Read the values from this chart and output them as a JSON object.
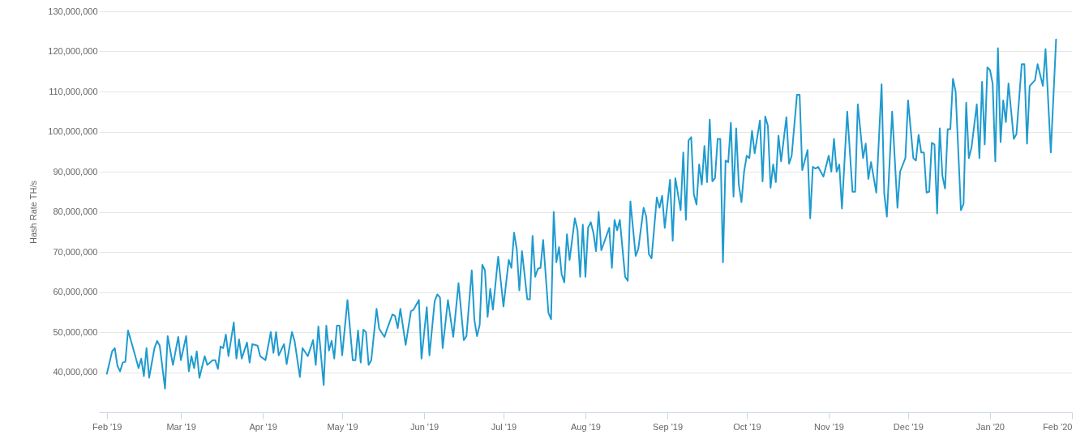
{
  "chart_data": {
    "type": "line",
    "ylabel": "Hash Rate TH/s",
    "x": [
      "2019-02-01",
      "2019-02-03",
      "2019-02-04",
      "2019-02-05",
      "2019-02-06",
      "2019-02-07",
      "2019-02-08",
      "2019-02-09",
      "2019-02-11",
      "2019-02-13",
      "2019-02-14",
      "2019-02-15",
      "2019-02-16",
      "2019-02-17",
      "2019-02-19",
      "2019-02-20",
      "2019-02-21",
      "2019-02-23",
      "2019-02-24",
      "2019-02-26",
      "2019-02-28",
      "2019-03-01",
      "2019-03-03",
      "2019-03-04",
      "2019-03-05",
      "2019-03-06",
      "2019-03-07",
      "2019-03-08",
      "2019-03-10",
      "2019-03-11",
      "2019-03-13",
      "2019-03-14",
      "2019-03-15",
      "2019-03-16",
      "2019-03-17",
      "2019-03-18",
      "2019-03-19",
      "2019-03-21",
      "2019-03-22",
      "2019-03-23",
      "2019-03-24",
      "2019-03-26",
      "2019-03-27",
      "2019-03-28",
      "2019-03-30",
      "2019-03-31",
      "2019-04-02",
      "2019-04-04",
      "2019-04-05",
      "2019-04-06",
      "2019-04-07",
      "2019-04-09",
      "2019-04-10",
      "2019-04-12",
      "2019-04-13",
      "2019-04-15",
      "2019-04-16",
      "2019-04-18",
      "2019-04-20",
      "2019-04-21",
      "2019-04-22",
      "2019-04-24",
      "2019-04-25",
      "2019-04-26",
      "2019-04-27",
      "2019-04-28",
      "2019-04-29",
      "2019-04-30",
      "2019-05-01",
      "2019-05-03",
      "2019-05-05",
      "2019-05-06",
      "2019-05-07",
      "2019-05-08",
      "2019-05-09",
      "2019-05-10",
      "2019-05-11",
      "2019-05-12",
      "2019-05-14",
      "2019-05-15",
      "2019-05-17",
      "2019-05-18",
      "2019-05-20",
      "2019-05-21",
      "2019-05-22",
      "2019-05-23",
      "2019-05-24",
      "2019-05-25",
      "2019-05-27",
      "2019-05-28",
      "2019-05-30",
      "2019-05-31",
      "2019-06-02",
      "2019-06-03",
      "2019-06-05",
      "2019-06-06",
      "2019-06-07",
      "2019-06-08",
      "2019-06-10",
      "2019-06-12",
      "2019-06-14",
      "2019-06-16",
      "2019-06-17",
      "2019-06-19",
      "2019-06-20",
      "2019-06-21",
      "2019-06-22",
      "2019-06-23",
      "2019-06-24",
      "2019-06-25",
      "2019-06-26",
      "2019-06-27",
      "2019-06-29",
      "2019-07-01",
      "2019-07-03",
      "2019-07-04",
      "2019-07-05",
      "2019-07-06",
      "2019-07-07",
      "2019-07-08",
      "2019-07-10",
      "2019-07-11",
      "2019-07-12",
      "2019-07-13",
      "2019-07-14",
      "2019-07-15",
      "2019-07-16",
      "2019-07-18",
      "2019-07-19",
      "2019-07-20",
      "2019-07-21",
      "2019-07-22",
      "2019-07-23",
      "2019-07-24",
      "2019-07-25",
      "2019-07-26",
      "2019-07-28",
      "2019-07-29",
      "2019-07-30",
      "2019-07-31",
      "2019-08-01",
      "2019-08-02",
      "2019-08-03",
      "2019-08-04",
      "2019-08-05",
      "2019-08-06",
      "2019-08-07",
      "2019-08-10",
      "2019-08-11",
      "2019-08-12",
      "2019-08-13",
      "2019-08-14",
      "2019-08-16",
      "2019-08-17",
      "2019-08-18",
      "2019-08-20",
      "2019-08-21",
      "2019-08-23",
      "2019-08-24",
      "2019-08-25",
      "2019-08-26",
      "2019-08-28",
      "2019-08-29",
      "2019-08-30",
      "2019-08-31",
      "2019-09-02",
      "2019-09-03",
      "2019-09-04",
      "2019-09-06",
      "2019-09-07",
      "2019-09-08",
      "2019-09-09",
      "2019-09-10",
      "2019-09-11",
      "2019-09-12",
      "2019-09-13",
      "2019-09-14",
      "2019-09-15",
      "2019-09-16",
      "2019-09-17",
      "2019-09-18",
      "2019-09-19",
      "2019-09-20",
      "2019-09-21",
      "2019-09-22",
      "2019-09-23",
      "2019-09-24",
      "2019-09-25",
      "2019-09-26",
      "2019-09-27",
      "2019-09-28",
      "2019-09-29",
      "2019-09-30",
      "2019-10-01",
      "2019-10-02",
      "2019-10-03",
      "2019-10-04",
      "2019-10-06",
      "2019-10-07",
      "2019-10-08",
      "2019-10-09",
      "2019-10-10",
      "2019-10-11",
      "2019-10-12",
      "2019-10-13",
      "2019-10-14",
      "2019-10-16",
      "2019-10-17",
      "2019-10-18",
      "2019-10-20",
      "2019-10-21",
      "2019-10-22",
      "2019-10-24",
      "2019-10-25",
      "2019-10-26",
      "2019-10-27",
      "2019-10-28",
      "2019-10-30",
      "2019-11-01",
      "2019-11-02",
      "2019-11-03",
      "2019-11-04",
      "2019-11-05",
      "2019-11-06",
      "2019-11-08",
      "2019-11-10",
      "2019-11-11",
      "2019-11-12",
      "2019-11-14",
      "2019-11-15",
      "2019-11-16",
      "2019-11-17",
      "2019-11-19",
      "2019-11-21",
      "2019-11-22",
      "2019-11-23",
      "2019-11-25",
      "2019-11-27",
      "2019-11-28",
      "2019-11-30",
      "2019-12-01",
      "2019-12-03",
      "2019-12-04",
      "2019-12-05",
      "2019-12-06",
      "2019-12-07",
      "2019-12-08",
      "2019-12-09",
      "2019-12-10",
      "2019-12-11",
      "2019-12-12",
      "2019-12-13",
      "2019-12-14",
      "2019-12-15",
      "2019-12-16",
      "2019-12-17",
      "2019-12-18",
      "2019-12-19",
      "2019-12-21",
      "2019-12-22",
      "2019-12-23",
      "2019-12-24",
      "2019-12-25",
      "2019-12-27",
      "2019-12-28",
      "2019-12-29",
      "2019-12-30",
      "2019-12-31",
      "2020-01-01",
      "2020-01-02",
      "2020-01-03",
      "2020-01-04",
      "2020-01-05",
      "2020-01-06",
      "2020-01-07",
      "2020-01-08",
      "2020-01-10",
      "2020-01-11",
      "2020-01-13",
      "2020-01-14",
      "2020-01-15",
      "2020-01-16",
      "2020-01-18",
      "2020-01-19",
      "2020-01-21",
      "2020-01-22",
      "2020-01-24",
      "2020-01-26"
    ],
    "series": [
      {
        "color": "#1f9bcf",
        "values": [
          39600000,
          45200000,
          46000000,
          41600000,
          40200000,
          42400000,
          42600000,
          50400000,
          45800000,
          41000000,
          43400000,
          39000000,
          46000000,
          38600000,
          46000000,
          47800000,
          46600000,
          35900000,
          49000000,
          41800000,
          48800000,
          43000000,
          49000000,
          40200000,
          44000000,
          41000000,
          45200000,
          38600000,
          44000000,
          41800000,
          43000000,
          43000000,
          40800000,
          46400000,
          46000000,
          49400000,
          44000000,
          52400000,
          43400000,
          48200000,
          43400000,
          47400000,
          42400000,
          47000000,
          46600000,
          44000000,
          43000000,
          50000000,
          44800000,
          50000000,
          44200000,
          47000000,
          42000000,
          50000000,
          47800000,
          38800000,
          46000000,
          44000000,
          48000000,
          41800000,
          51400000,
          36800000,
          51600000,
          45400000,
          47800000,
          43400000,
          51600000,
          51600000,
          44200000,
          58000000,
          43000000,
          43000000,
          50400000,
          42400000,
          50600000,
          50000000,
          41800000,
          43000000,
          55800000,
          50800000,
          48800000,
          50800000,
          54400000,
          54000000,
          51000000,
          55800000,
          51400000,
          46800000,
          55200000,
          55600000,
          58000000,
          43400000,
          56200000,
          44200000,
          57800000,
          59400000,
          58600000,
          46000000,
          58000000,
          48800000,
          62200000,
          48000000,
          49000000,
          65400000,
          53000000,
          49000000,
          51800000,
          66800000,
          65400000,
          53800000,
          60800000,
          55600000,
          68800000,
          56400000,
          68000000,
          66000000,
          74800000,
          70800000,
          60400000,
          70200000,
          58200000,
          58200000,
          74000000,
          63800000,
          65800000,
          66000000,
          73000000,
          54800000,
          53200000,
          80000000,
          67400000,
          71200000,
          64400000,
          62400000,
          74400000,
          68000000,
          78400000,
          75400000,
          63800000,
          76800000,
          63800000,
          76000000,
          77400000,
          74800000,
          70200000,
          80000000,
          70400000,
          76000000,
          66000000,
          78000000,
          75400000,
          78000000,
          63800000,
          62800000,
          82600000,
          69000000,
          70800000,
          81000000,
          78800000,
          69400000,
          68400000,
          83600000,
          81000000,
          84000000,
          76000000,
          88000000,
          72800000,
          88400000,
          80400000,
          94800000,
          78000000,
          97800000,
          98600000,
          84400000,
          81800000,
          91800000,
          86800000,
          96400000,
          87400000,
          103000000,
          87600000,
          88400000,
          98200000,
          98200000,
          67400000,
          92800000,
          92400000,
          102200000,
          83800000,
          100800000,
          86800000,
          82400000,
          90000000,
          94000000,
          93400000,
          100200000,
          94600000,
          102800000,
          87600000,
          103800000,
          101400000,
          86000000,
          91800000,
          87400000,
          99000000,
          92600000,
          103600000,
          92000000,
          94000000,
          109200000,
          109200000,
          90400000,
          95400000,
          78400000,
          91200000,
          90800000,
          91200000,
          88800000,
          94000000,
          90000000,
          98200000,
          90000000,
          91800000,
          80800000,
          105000000,
          85000000,
          85000000,
          106800000,
          93400000,
          97000000,
          88200000,
          92400000,
          84800000,
          111800000,
          84600000,
          78800000,
          105000000,
          81000000,
          90000000,
          93400000,
          107800000,
          93400000,
          92800000,
          99200000,
          94800000,
          94800000,
          84800000,
          85000000,
          97200000,
          96800000,
          79600000,
          100800000,
          89000000,
          85800000,
          100600000,
          100600000,
          113200000,
          110000000,
          80400000,
          82000000,
          107200000,
          93400000,
          96000000,
          106800000,
          93400000,
          112400000,
          96800000,
          116000000,
          115400000,
          112000000,
          92600000,
          120800000,
          97400000,
          107800000,
          102400000,
          112000000,
          98200000,
          99400000,
          116800000,
          116800000,
          97000000,
          111400000,
          112800000,
          116800000,
          111400000,
          120600000,
          94800000,
          123000000
        ]
      }
    ],
    "xlim": [
      "2019-01-29",
      "2020-02-01"
    ],
    "xticks": [
      {
        "value": "2019-02-01",
        "label": "Feb '19"
      },
      {
        "value": "2019-03-01",
        "label": "Mar '19"
      },
      {
        "value": "2019-04-01",
        "label": "Apr '19"
      },
      {
        "value": "2019-05-01",
        "label": "May '19"
      },
      {
        "value": "2019-06-01",
        "label": "Jun '19"
      },
      {
        "value": "2019-07-01",
        "label": "Jul '19"
      },
      {
        "value": "2019-08-01",
        "label": "Aug '19"
      },
      {
        "value": "2019-09-01",
        "label": "Sep '19"
      },
      {
        "value": "2019-10-01",
        "label": "Oct '19"
      },
      {
        "value": "2019-11-01",
        "label": "Nov '19"
      },
      {
        "value": "2019-12-01",
        "label": "Dec '19"
      },
      {
        "value": "2020-01-01",
        "label": "Jan '20"
      },
      {
        "value": "2020-02-01",
        "label": "Feb '20"
      }
    ],
    "ylim": [
      30000000,
      130000000
    ],
    "yticks": [
      {
        "value": 40000000,
        "label": "40,000,000"
      },
      {
        "value": 50000000,
        "label": "50,000,000"
      },
      {
        "value": 60000000,
        "label": "60,000,000"
      },
      {
        "value": 70000000,
        "label": "70,000,000"
      },
      {
        "value": 80000000,
        "label": "80,000,000"
      },
      {
        "value": 90000000,
        "label": "90,000,000"
      },
      {
        "value": 100000000,
        "label": "100,000,000"
      },
      {
        "value": 110000000,
        "label": "110,000,000"
      },
      {
        "value": 120000000,
        "label": "120,000,000"
      },
      {
        "value": 130000000,
        "label": "130,000,000"
      }
    ],
    "grid": "y",
    "line_style": "solid"
  }
}
